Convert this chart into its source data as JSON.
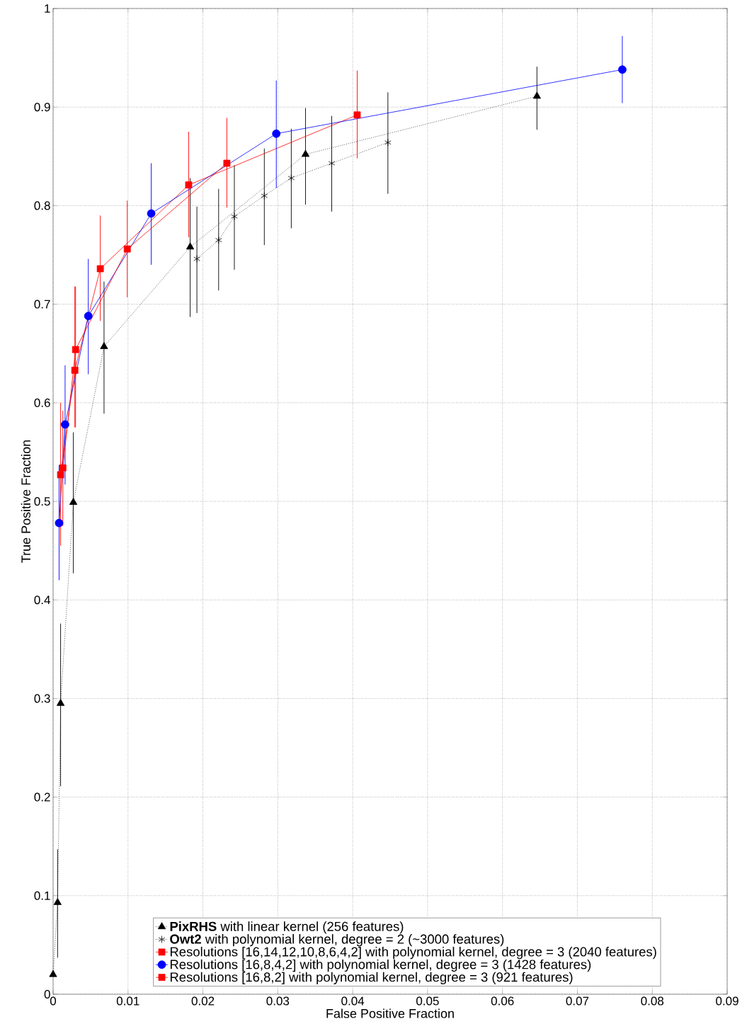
{
  "chart_data": {
    "type": "line",
    "xlabel": "False Positive Fraction",
    "ylabel": "True Positive Fraction",
    "xlim": [
      0,
      0.09
    ],
    "ylim": [
      0,
      1
    ],
    "xticks": [
      0,
      0.01,
      0.02,
      0.03,
      0.04,
      0.05,
      0.06,
      0.07,
      0.08,
      0.09
    ],
    "yticks": [
      0,
      0.1,
      0.2,
      0.3,
      0.4,
      0.5,
      0.6,
      0.7,
      0.8,
      0.9,
      1
    ],
    "grid": true,
    "legend": "bottom",
    "series": [
      {
        "name": "**PixRHS** with linear kernel (256 features)",
        "color": "#000000",
        "marker": "triangle",
        "line_style": "dotted",
        "x": [
          0,
          0.0006,
          0.001,
          0.0027,
          0.0068,
          0.0183,
          0.0337,
          0.0646
        ],
        "values": [
          0.02,
          0.093,
          0.295,
          0.499,
          0.657,
          0.758,
          0.852,
          0.911
        ],
        "errors": [
          null,
          [
            0.037,
            0.147
          ],
          [
            0.211,
            0.376
          ],
          [
            0.427,
            0.57
          ],
          [
            0.589,
            0.723
          ],
          [
            0.687,
            0.828
          ],
          [
            0.801,
            0.899
          ],
          [
            0.877,
            0.941
          ]
        ]
      },
      {
        "name": "**Owt2** with polynomial kernel, degree = 2 (~3000 features)",
        "color": "#000000",
        "marker": "cross",
        "line_style": "dotted",
        "x": [
          0.0192,
          0.0221,
          0.0242,
          0.0282,
          0.0318,
          0.0372,
          0.0447
        ],
        "values": [
          0.746,
          0.765,
          0.789,
          0.81,
          0.828,
          0.843,
          0.864
        ],
        "errors": [
          [
            0.691,
            0.799
          ],
          [
            0.714,
            0.817
          ],
          [
            0.735,
            0.841
          ],
          [
            0.76,
            0.858
          ],
          [
            0.777,
            0.878
          ],
          [
            0.794,
            0.891
          ],
          [
            0.812,
            0.915
          ]
        ]
      },
      {
        "name": "Resolutions [16,14,12,10,8,6,4,2] with polynomial kernel, degree = 3 (2040 features)",
        "color": "#ff0000",
        "marker": "square",
        "line_style": "solid",
        "x": [
          0.001,
          0.0029,
          0.0063,
          0.0181,
          0.0406
        ],
        "values": [
          0.527,
          0.633,
          0.736,
          0.821,
          0.892
        ],
        "errors": [
          [
            0.455,
            0.6
          ],
          [
            0.575,
            0.718
          ],
          [
            0.683,
            0.79
          ],
          [
            0.768,
            0.875
          ],
          [
            0.848,
            0.937
          ]
        ]
      },
      {
        "name": "Resolutions [16,8,4,2] with polynomial kernel, degree = 3 (1428 features)",
        "color": "#0000ff",
        "marker": "circle",
        "line_style": "solid",
        "x": [
          0.0008,
          0.0016,
          0.0047,
          0.0131,
          0.0298,
          0.076
        ],
        "values": [
          0.478,
          0.578,
          0.688,
          0.792,
          0.873,
          0.938
        ],
        "errors": [
          [
            0.42,
            0.537
          ],
          [
            0.517,
            0.638
          ],
          [
            0.629,
            0.746
          ],
          [
            0.74,
            0.843
          ],
          [
            0.818,
            0.927
          ],
          [
            0.904,
            0.972
          ]
        ]
      },
      {
        "name": "Resolutions [16,8,2] with polynomial kernel, degree = 3 (921 features)",
        "color": "#ff0000",
        "marker": "square",
        "line_style": "solid",
        "x": [
          0.0013,
          0.003,
          0.0099,
          0.0232
        ],
        "values": [
          0.534,
          0.654,
          0.756,
          0.843
        ],
        "errors": [
          [
            0.475,
            0.592
          ],
          [
            0.575,
            0.718
          ],
          [
            0.707,
            0.805
          ],
          [
            0.798,
            0.889
          ]
        ]
      }
    ]
  }
}
